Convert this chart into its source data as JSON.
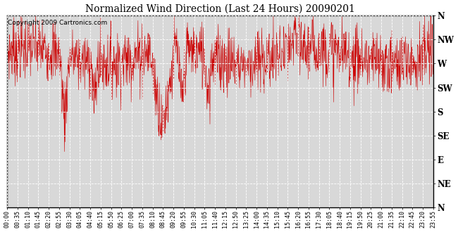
{
  "title": "Normalized Wind Direction (Last 24 Hours) 20090201",
  "copyright_text": "Copyright 2009 Cartronics.com",
  "line_color": "#cc0000",
  "bg_color": "#ffffff",
  "plot_bg_color": "#d8d8d8",
  "grid_color": "#ffffff",
  "ytick_labels": [
    "N",
    "NW",
    "W",
    "SW",
    "S",
    "SE",
    "E",
    "NE",
    "N"
  ],
  "ytick_values": [
    360,
    315,
    270,
    225,
    180,
    135,
    90,
    45,
    0
  ],
  "ylim": [
    0,
    360
  ],
  "xtick_labels": [
    "00:00",
    "00:35",
    "01:10",
    "01:45",
    "02:20",
    "02:55",
    "03:30",
    "04:05",
    "04:40",
    "05:15",
    "05:50",
    "06:25",
    "07:00",
    "07:35",
    "08:10",
    "08:45",
    "09:20",
    "09:55",
    "10:30",
    "11:05",
    "11:40",
    "12:15",
    "12:50",
    "13:25",
    "14:00",
    "14:35",
    "15:10",
    "15:45",
    "16:20",
    "16:55",
    "17:30",
    "18:05",
    "18:40",
    "19:15",
    "19:50",
    "20:25",
    "21:00",
    "21:35",
    "22:10",
    "22:45",
    "23:20",
    "23:55"
  ],
  "n_points": 1440,
  "base_direction": 285,
  "noise_std": 30
}
